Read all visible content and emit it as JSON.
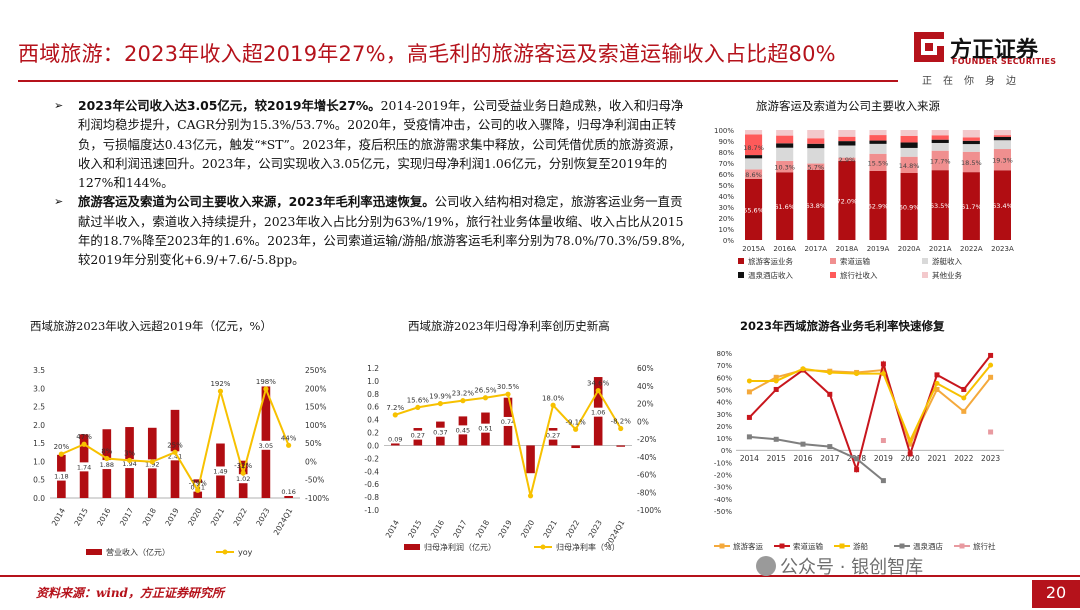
{
  "header": {
    "title": "西域旅游：2023年收入超2019年27%，高毛利的旅游客运及索道运输收入占比超80%",
    "logo_text": "方正证券",
    "logo_en": "FOUNDER SECURITIES",
    "logo_slogan": "正在你身边"
  },
  "bullets": [
    {
      "mark": "➢",
      "bold": "2023年公司收入达3.05亿元，较2019年增长27%。",
      "text": "2014-2019年，公司受益业务日趋成熟，收入和归母净利润均稳步提升，CAGR分别为15.3%/53.7%。2020年，受疫情冲击，公司的收入骤降，归母净利润由正转负，亏损幅度达0.43亿元，触发“*ST”。2023年，疫后积压的旅游需求集中释放，公司凭借优质的旅游资源，收入和利润迅速回升。2023年，公司实现收入3.05亿元，实现归母净利润1.06亿元，分别恢复至2019年的127%和144%。"
    },
    {
      "mark": "➢",
      "bold": "旅游客运及索道为公司主要收入来源，2023年毛利率迅速恢复。",
      "text": "公司收入结构相对稳定，旅游客运业务一直贡献过半收入，索道收入持续提升，2023年收入占比分别为63%/19%，旅行社业务体量收缩、收入占比从2015年的18.7%降至2023年的1.6%。2023年，公司索道运输/游船/旅游客运毛利率分别为78.0%/70.3%/59.8%,较2019年分别变化+6.9/+7.6/-5.8pp。"
    }
  ],
  "footer": {
    "source": "资料来源：wind，方正证券研究所",
    "watermark": "公众号 · 银创智库",
    "page_number": "20"
  },
  "colors": {
    "brand_red": "#b5121b",
    "dark_red": "#b10d12",
    "yellow": "#f7c100",
    "orange": "#f4a93c",
    "gray": "#7f7f7f",
    "pink": "#e89aa0"
  },
  "chart_data": [
    {
      "id": "revenue_mix",
      "type": "bar",
      "stacked": true,
      "title": "旅游客运及索道为公司主要收入来源",
      "categories": [
        "2015A",
        "2016A",
        "2017A",
        "2018A",
        "2019A",
        "2020A",
        "2021A",
        "2022A",
        "2023A"
      ],
      "ylim": [
        0,
        100
      ],
      "yticks": [
        "0%",
        "10%",
        "20%",
        "30%",
        "40%",
        "50%",
        "60%",
        "70%",
        "80%",
        "90%",
        "100%"
      ],
      "series": [
        {
          "name": "旅游客运业务",
          "values": [
            55.6,
            61.6,
            63.8,
            72.0,
            62.9,
            60.9,
            63.5,
            61.7,
            63.4
          ],
          "labels": [
            "55.6%",
            "61.6%",
            "63.8%",
            "72.0%",
            "62.9%",
            "60.9%",
            "63.5%",
            "61.7%",
            "63.4%"
          ]
        },
        {
          "name": "索道运输",
          "values": [
            8.6,
            10.3,
            5.7,
            2.9,
            15.5,
            14.8,
            17.7,
            18.5,
            19.3
          ],
          "labels": [
            "8.6%",
            "10.3%",
            "5.7%",
            "2.9%",
            "15.5%",
            "14.8%",
            "17.7%",
            "18.5%",
            "19.3%"
          ]
        },
        {
          "name": "游艇收入",
          "values": [
            10,
            12,
            14,
            11,
            9,
            8,
            7,
            7,
            8
          ]
        },
        {
          "name": "温泉酒店收入",
          "values": [
            3,
            4,
            4,
            4,
            3,
            5,
            3,
            3,
            3
          ]
        },
        {
          "name": "旅行社收入",
          "values": [
            18.7,
            7,
            5,
            4,
            5,
            6,
            4,
            3,
            1.6
          ]
        },
        {
          "name": "其他业务",
          "values": [
            4.1,
            5.1,
            7.5,
            6.1,
            4.6,
            5.3,
            4.8,
            6.8,
            4.7
          ]
        }
      ],
      "top_label": "18.7%"
    },
    {
      "id": "revenue_growth",
      "type": "bar",
      "title": "西域旅游2023年收入远超2019年（亿元，%）",
      "categories": [
        "2014",
        "2015",
        "2016",
        "2017",
        "2018",
        "2019",
        "2020",
        "2021",
        "2022",
        "2023",
        "2024Q1"
      ],
      "series": [
        {
          "name": "营业收入（亿元）",
          "values": [
            1.18,
            1.74,
            1.88,
            1.94,
            1.92,
            2.41,
            0.51,
            1.49,
            1.02,
            3.05,
            0.16
          ],
          "labels": [
            "1.18",
            "1.74",
            "1.88",
            "1.94",
            "1.92",
            "2.41",
            "0.51",
            "1.49",
            "1.02",
            "3.05",
            "0.16"
          ]
        },
        {
          "name": "yoy",
          "axis": "right",
          "values": [
            20,
            47,
            8,
            3,
            -1,
            25,
            -79,
            192,
            -32,
            198,
            44
          ],
          "labels": [
            "20%",
            "47%",
            "8%",
            "3%",
            "",
            "25%",
            "-79%",
            "192%",
            "-32%",
            "198%",
            "44%"
          ]
        }
      ],
      "ylim": [
        0,
        3.5
      ],
      "yticks": [
        "0.0",
        "0.5",
        "1.0",
        "1.5",
        "2.0",
        "2.5",
        "3.0",
        "3.5"
      ],
      "y2lim": [
        -100,
        250
      ],
      "y2ticks": [
        "-100%",
        "-50%",
        "0%",
        "50%",
        "100%",
        "150%",
        "200%",
        "250%"
      ]
    },
    {
      "id": "net_profit",
      "type": "bar",
      "title": "西域旅游2023年归母净利率创历史新高",
      "categories": [
        "2014",
        "2015",
        "2016",
        "2017",
        "2018",
        "2019",
        "2020",
        "2021",
        "2022",
        "2023",
        "2024Q1"
      ],
      "series": [
        {
          "name": "归母净利润（亿元）",
          "values": [
            0.09,
            0.27,
            0.37,
            0.45,
            0.51,
            0.74,
            -0.43,
            0.27,
            -0.04,
            1.06,
            -0.02
          ],
          "labels": [
            "0.09",
            "0.27",
            "0.37",
            "0.45",
            "0.51",
            "0.74",
            "",
            "0.27",
            "",
            "1.06",
            ""
          ]
        },
        {
          "name": "归母净利率（%）",
          "axis": "right",
          "values": [
            7.2,
            15.6,
            19.9,
            23.2,
            26.5,
            30.5,
            -84,
            18,
            -9.1,
            34.6,
            -8.2
          ],
          "labels": [
            "7.2%",
            "15.6%",
            "19.9%",
            "23.2%",
            "26.5%",
            "30.5%",
            "",
            "18.0%",
            "-9.1%",
            "34.6%",
            "-8.2%"
          ]
        }
      ],
      "ylim": [
        -1.0,
        1.2
      ],
      "yticks": [
        "-1.0",
        "-0.8",
        "-0.6",
        "-0.4",
        "-0.2",
        "0.0",
        "0.2",
        "0.4",
        "0.6",
        "0.8",
        "1.0",
        "1.2"
      ],
      "y2lim": [
        -100,
        60
      ],
      "y2ticks": [
        "-100%",
        "-80%",
        "-60%",
        "-40%",
        "-20%",
        "0%",
        "20%",
        "40%",
        "60%"
      ]
    },
    {
      "id": "segment_margin",
      "type": "line",
      "title": "2023年西域旅游各业务毛利率快速修复",
      "categories": [
        "2014",
        "2015",
        "2016",
        "2017",
        "2018",
        "2019",
        "2020",
        "2021",
        "2022",
        "2023"
      ],
      "ylim": [
        -50,
        80
      ],
      "yticks": [
        "-50%",
        "-40%",
        "-30%",
        "-20%",
        "-10%",
        "0%",
        "10%",
        "20%",
        "30%",
        "40%",
        "50%",
        "60%",
        "70%",
        "80%"
      ],
      "series": [
        {
          "name": "旅游客运",
          "values": [
            48,
            60,
            66,
            65,
            64,
            66,
            5,
            50,
            32,
            60
          ]
        },
        {
          "name": "索道运输",
          "values": [
            27,
            50,
            66,
            46,
            -16,
            71,
            -3,
            62,
            50,
            78
          ]
        },
        {
          "name": "游船",
          "values": [
            57,
            57,
            67,
            64,
            63,
            63,
            8,
            55,
            43,
            70
          ]
        },
        {
          "name": "温泉酒店",
          "values": [
            11,
            9,
            5,
            3,
            -7,
            -25,
            null,
            null,
            null,
            null
          ]
        },
        {
          "name": "旅行社",
          "values": [
            null,
            null,
            null,
            null,
            null,
            8,
            null,
            null,
            null,
            15
          ]
        }
      ]
    }
  ]
}
